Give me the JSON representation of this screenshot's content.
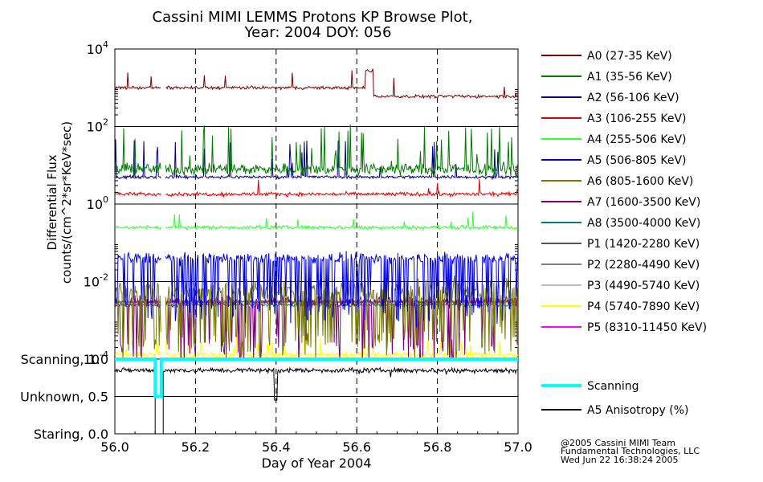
{
  "chart_data": {
    "type": "line",
    "title_line1": "Cassini MIMI LEMMS Protons KP Browse Plot,",
    "title_line2": "Year: 2004 DOY: 056",
    "ylabel_line1": "Differential Flux",
    "ylabel_line2": "counts/(cm^2*sr*KeV*sec)",
    "xlabel": "Day of Year 2004",
    "xlim": [
      56.0,
      57.0
    ],
    "x_ticks": [
      "56.0",
      "56.2",
      "56.4",
      "56.6",
      "56.8",
      "57.0"
    ],
    "y_scale": "log",
    "ylim": [
      0.0001,
      10000
    ],
    "y_tick_labels": [
      {
        "base": "10",
        "exp": "4",
        "value": 10000
      },
      {
        "base": "10",
        "exp": "2",
        "value": 100
      },
      {
        "base": "10",
        "exp": "0",
        "value": 1
      },
      {
        "base": "10",
        "exp": "-2",
        "value": 0.01
      },
      {
        "base": "10",
        "exp": "-4",
        "value": 0.0001
      }
    ],
    "grid": true,
    "series": [
      {
        "name": "A0 (27-35 KeV)",
        "color": "#7a0000",
        "level_before": 1000,
        "level_after": 600,
        "step_x": 56.63,
        "spread": 0.05,
        "spikes": 0.02,
        "spike_amp": 2.0
      },
      {
        "name": "A1 (35-56 KeV)",
        "color": "#007a00",
        "level": 8,
        "spread": 0.18,
        "spikes": 0.1,
        "spike_amp": 12
      },
      {
        "name": "A2 (56-106 KeV)",
        "color": "#00007a",
        "level": 5,
        "spread": 0.05,
        "spikes": 0.05,
        "spike_amp": 8
      },
      {
        "name": "A3 (106-255 KeV)",
        "color": "#e00000",
        "level": 1.8,
        "spread": 0.06,
        "spikes": 0.02,
        "spike_amp": 1.8
      },
      {
        "name": "A4 (255-506 KeV)",
        "color": "#30ff30",
        "level": 0.25,
        "spread": 0.06,
        "spikes": 0.02,
        "spike_amp": 1.6
      },
      {
        "name": "A5 (506-805 KeV)",
        "color": "#0000e0",
        "level": 0.04,
        "spread": 0.18,
        "dips": 0.3,
        "dip_amp": 0.08
      },
      {
        "name": "A6 (805-1600 KeV)",
        "color": "#7a7a00",
        "level": 0.006,
        "spread": 0.35,
        "dips": 0.25,
        "dip_amp": 0.05
      },
      {
        "name": "A7 (1600-3500 KeV)",
        "color": "#7a007a",
        "level": 0.003,
        "spread": 0.2,
        "dips": 0.15,
        "dip_amp": 0.08
      },
      {
        "name": "A8 (3500-4000 KeV)",
        "color": "#007a7a",
        "level": 0.0025,
        "spread": 0.05,
        "spikes": 0.0,
        "spike_amp": 1
      },
      {
        "name": "P1 (1420-2280 KeV)",
        "color": "#555555",
        "level": 0.003,
        "spread": 0.06,
        "spikes": 0.01,
        "spike_amp": 1.5
      },
      {
        "name": "P2 (2280-4490 KeV)",
        "color": "#808080",
        "level": 0.003,
        "spread": 0.04,
        "spikes": 0.0,
        "spike_amp": 1
      },
      {
        "name": "P3 (4490-5740 KeV)",
        "color": "#bbbbbb",
        "level": 0.003,
        "spread": 0.04,
        "spikes": 0.0,
        "spike_amp": 1
      },
      {
        "name": "P4 (5740-7890 KeV)",
        "color": "#ffff00",
        "level": 0.00013,
        "spread": 0.08,
        "spikes": 0.08,
        "spike_amp": 1.8
      },
      {
        "name": "P5 (8310-11450 KeV)",
        "color": "#ff00ff",
        "level": 0.0001,
        "spread": 0.0,
        "spikes": 0.0,
        "spike_amp": 1
      }
    ],
    "data_gap": [
      56.115,
      56.125
    ],
    "lower_panel": {
      "y_tick_labels": [
        {
          "label": "Scanning, 1.0",
          "value": 1.0
        },
        {
          "label": "Unknown, 0.5",
          "value": 0.5
        },
        {
          "label": "Staring, 0.0",
          "value": 0.0
        }
      ],
      "ylim": [
        0.0,
        1.0
      ],
      "series": [
        {
          "name": "Scanning",
          "color": "#00ffff",
          "value": 1.0,
          "dip_from": 56.1,
          "dip_to": 56.115,
          "dip_value": 0.5
        },
        {
          "name": "A5 Anisotropy (%)",
          "color": "#000000",
          "level": 0.85,
          "spread": 0.04,
          "gap_from": 56.1,
          "gap_to": 56.12
        }
      ]
    },
    "credits": [
      "@2005 Cassini MIMI Team",
      "Fundamental Technologies, LLC",
      "Wed Jun 22 16:38:24 2005"
    ]
  }
}
